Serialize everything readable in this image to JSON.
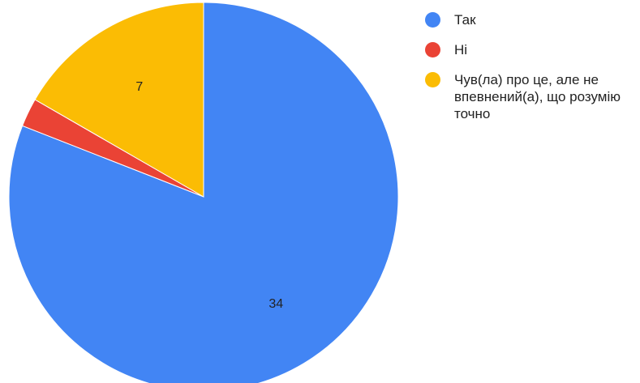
{
  "chart_data": {
    "type": "pie",
    "categories": [
      "Так",
      "Ні",
      "Чув(ла) про це, але не впевнений(а), що розумію точно"
    ],
    "values": [
      34,
      1,
      7
    ],
    "data_labels": [
      "34",
      "",
      "7"
    ],
    "colors": [
      "#4285f4",
      "#ea4335",
      "#fbbc04"
    ],
    "legend_position": "right"
  },
  "legend": {
    "items": [
      {
        "label": "Так",
        "color": "#4285f4"
      },
      {
        "label": "Ні",
        "color": "#ea4335"
      },
      {
        "label": "Чув(ла) про це, але не впевнений(а), що розумію точно",
        "color": "#fbbc04"
      }
    ]
  }
}
